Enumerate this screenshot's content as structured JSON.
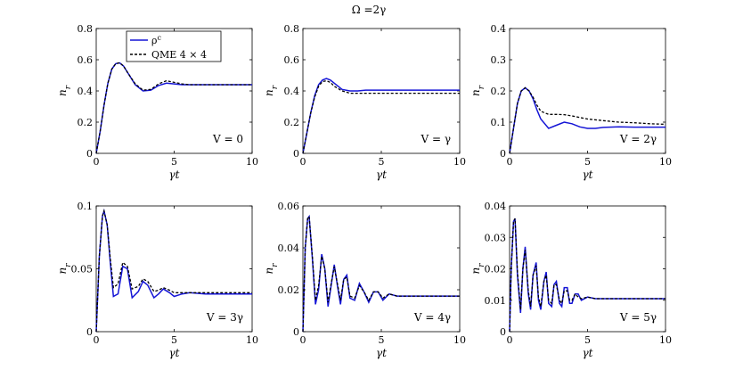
{
  "figure": {
    "title": "Ω =2γ"
  },
  "legend": {
    "entries": [
      {
        "label": "ρ^c",
        "color": "#1515d6",
        "style": "solid"
      },
      {
        "label": "QME 4 × 4",
        "color": "#000000",
        "style": "dashed"
      }
    ]
  },
  "colors": {
    "series_rho": "#1515d6",
    "series_qme": "#000000"
  },
  "chart_data": [
    {
      "type": "line",
      "xlabel": "γt",
      "ylabel": "n_r",
      "xlim": [
        0,
        10
      ],
      "ylim": [
        0,
        0.8
      ],
      "xticks": [
        "0",
        "5",
        "10"
      ],
      "yticks": [
        "0",
        "0.2",
        "0.4",
        "0.6",
        "0.8"
      ],
      "annotation": "V = 0",
      "series": [
        {
          "name": "ρ^c",
          "x": [
            0,
            0.25,
            0.5,
            0.75,
            1,
            1.25,
            1.5,
            1.75,
            2,
            2.5,
            3,
            3.5,
            4,
            4.5,
            5,
            5.5,
            6,
            7,
            8,
            9,
            10
          ],
          "y": [
            0,
            0.14,
            0.31,
            0.45,
            0.54,
            0.575,
            0.58,
            0.56,
            0.52,
            0.44,
            0.4,
            0.405,
            0.435,
            0.45,
            0.445,
            0.44,
            0.44,
            0.44,
            0.44,
            0.44,
            0.44
          ]
        },
        {
          "name": "QME 4 × 4",
          "x": [
            0,
            0.25,
            0.5,
            0.75,
            1,
            1.25,
            1.5,
            1.75,
            2,
            2.5,
            3,
            3.5,
            4,
            4.5,
            5,
            5.5,
            6,
            7,
            8,
            9,
            10
          ],
          "y": [
            0,
            0.14,
            0.31,
            0.45,
            0.54,
            0.575,
            0.58,
            0.56,
            0.52,
            0.445,
            0.405,
            0.41,
            0.445,
            0.465,
            0.455,
            0.445,
            0.44,
            0.44,
            0.44,
            0.44,
            0.44
          ]
        }
      ]
    },
    {
      "type": "line",
      "xlabel": "γt",
      "ylabel": "n_r",
      "xlim": [
        0,
        10
      ],
      "ylim": [
        0,
        0.8
      ],
      "xticks": [
        "0",
        "5",
        "10"
      ],
      "yticks": [
        "0",
        "0.2",
        "0.4",
        "0.6",
        "0.8"
      ],
      "annotation": "V = γ",
      "series": [
        {
          "name": "ρ^c",
          "x": [
            0,
            0.25,
            0.5,
            0.75,
            1,
            1.25,
            1.5,
            1.75,
            2,
            2.5,
            3,
            3.5,
            4,
            5,
            6,
            7,
            8,
            9,
            10
          ],
          "y": [
            0,
            0.13,
            0.26,
            0.37,
            0.44,
            0.47,
            0.48,
            0.47,
            0.45,
            0.41,
            0.4,
            0.4,
            0.405,
            0.405,
            0.405,
            0.405,
            0.405,
            0.405,
            0.405
          ]
        },
        {
          "name": "QME 4 × 4",
          "x": [
            0,
            0.25,
            0.5,
            0.75,
            1,
            1.25,
            1.5,
            1.75,
            2,
            2.5,
            3,
            3.5,
            4,
            5,
            6,
            7,
            8,
            9,
            10
          ],
          "y": [
            0,
            0.13,
            0.26,
            0.36,
            0.43,
            0.46,
            0.465,
            0.455,
            0.43,
            0.4,
            0.385,
            0.385,
            0.385,
            0.385,
            0.385,
            0.385,
            0.385,
            0.385,
            0.385
          ]
        }
      ]
    },
    {
      "type": "line",
      "xlabel": "γt",
      "ylabel": "n_r",
      "xlim": [
        0,
        10
      ],
      "ylim": [
        0,
        0.4
      ],
      "xticks": [
        "0",
        "5",
        "10"
      ],
      "yticks": [
        "0",
        "0.1",
        "0.2",
        "0.3",
        "0.4"
      ],
      "annotation": "V = 2γ",
      "series": [
        {
          "name": "ρ^c",
          "x": [
            0,
            0.25,
            0.5,
            0.75,
            1,
            1.25,
            1.5,
            1.75,
            2,
            2.5,
            3,
            3.5,
            4,
            4.5,
            5,
            5.5,
            6,
            7,
            8,
            9,
            10
          ],
          "y": [
            0,
            0.08,
            0.16,
            0.2,
            0.21,
            0.2,
            0.175,
            0.14,
            0.11,
            0.08,
            0.09,
            0.1,
            0.095,
            0.085,
            0.08,
            0.08,
            0.083,
            0.085,
            0.084,
            0.084,
            0.084
          ]
        },
        {
          "name": "QME 4 × 4",
          "x": [
            0,
            0.25,
            0.5,
            0.75,
            1,
            1.25,
            1.5,
            1.75,
            2,
            2.5,
            3,
            3.5,
            4,
            4.5,
            5,
            6,
            7,
            8,
            9,
            10
          ],
          "y": [
            0,
            0.08,
            0.16,
            0.2,
            0.21,
            0.2,
            0.18,
            0.155,
            0.135,
            0.125,
            0.125,
            0.124,
            0.12,
            0.115,
            0.11,
            0.105,
            0.1,
            0.098,
            0.095,
            0.093
          ]
        }
      ]
    },
    {
      "type": "line",
      "xlabel": "γt",
      "ylabel": "n_r",
      "xlim": [
        0,
        10
      ],
      "ylim": [
        0,
        0.1
      ],
      "xticks": [
        "0",
        "5",
        "10"
      ],
      "yticks": [
        "0",
        "0.05",
        "0.1"
      ],
      "annotation": "V = 3γ",
      "series": [
        {
          "name": "ρ^c",
          "x": [
            0,
            0.2,
            0.4,
            0.5,
            0.7,
            0.9,
            1.1,
            1.4,
            1.7,
            2.0,
            2.3,
            2.7,
            3.0,
            3.3,
            3.7,
            4.0,
            4.3,
            4.7,
            5.0,
            5.5,
            6,
            7,
            8,
            9,
            10
          ],
          "y": [
            0,
            0.06,
            0.092,
            0.096,
            0.085,
            0.055,
            0.028,
            0.03,
            0.052,
            0.05,
            0.027,
            0.032,
            0.04,
            0.037,
            0.027,
            0.03,
            0.034,
            0.031,
            0.028,
            0.03,
            0.031,
            0.03,
            0.03,
            0.03,
            0.03
          ]
        },
        {
          "name": "QME 4 × 4",
          "x": [
            0,
            0.2,
            0.4,
            0.5,
            0.7,
            0.9,
            1.1,
            1.4,
            1.7,
            2.0,
            2.3,
            2.7,
            3.0,
            3.3,
            3.7,
            4.0,
            4.3,
            4.7,
            5.0,
            5.5,
            6,
            7,
            8,
            9,
            10
          ],
          "y": [
            0,
            0.06,
            0.092,
            0.096,
            0.085,
            0.058,
            0.035,
            0.038,
            0.055,
            0.052,
            0.034,
            0.036,
            0.042,
            0.04,
            0.032,
            0.033,
            0.035,
            0.033,
            0.031,
            0.031,
            0.031,
            0.031,
            0.031,
            0.031,
            0.031
          ]
        }
      ]
    },
    {
      "type": "line",
      "xlabel": "γt",
      "ylabel": "n_r",
      "xlim": [
        0,
        10
      ],
      "ylim": [
        0,
        0.06
      ],
      "xticks": [
        "0",
        "5",
        "10"
      ],
      "yticks": [
        "0",
        "0.02",
        "0.04",
        "0.06"
      ],
      "annotation": "V = 4γ",
      "series": [
        {
          "name": "ρ^c",
          "x": [
            0,
            0.15,
            0.3,
            0.4,
            0.6,
            0.8,
            1.0,
            1.2,
            1.4,
            1.6,
            1.8,
            2.0,
            2.2,
            2.4,
            2.6,
            2.8,
            3.0,
            3.3,
            3.6,
            3.9,
            4.2,
            4.5,
            4.8,
            5.1,
            5.5,
            6,
            7,
            8,
            9,
            10
          ],
          "y": [
            0,
            0.04,
            0.054,
            0.055,
            0.035,
            0.013,
            0.02,
            0.037,
            0.03,
            0.012,
            0.022,
            0.032,
            0.022,
            0.013,
            0.025,
            0.027,
            0.016,
            0.015,
            0.023,
            0.019,
            0.014,
            0.019,
            0.019,
            0.015,
            0.018,
            0.017,
            0.017,
            0.017,
            0.017,
            0.017
          ]
        },
        {
          "name": "QME 4 × 4",
          "x": [
            0,
            0.15,
            0.3,
            0.4,
            0.6,
            0.8,
            1.0,
            1.2,
            1.4,
            1.6,
            1.8,
            2.0,
            2.2,
            2.4,
            2.6,
            2.8,
            3.0,
            3.3,
            3.6,
            3.9,
            4.2,
            4.5,
            4.8,
            5.1,
            5.5,
            6,
            7,
            8,
            9,
            10
          ],
          "y": [
            0,
            0.04,
            0.054,
            0.055,
            0.036,
            0.015,
            0.022,
            0.036,
            0.03,
            0.014,
            0.023,
            0.031,
            0.023,
            0.015,
            0.025,
            0.026,
            0.017,
            0.016,
            0.022,
            0.019,
            0.015,
            0.019,
            0.019,
            0.016,
            0.018,
            0.017,
            0.017,
            0.017,
            0.017,
            0.017
          ]
        }
      ]
    },
    {
      "type": "line",
      "xlabel": "γt",
      "ylabel": "n_r",
      "xlim": [
        0,
        10
      ],
      "ylim": [
        0,
        0.04
      ],
      "xticks": [
        "0",
        "5",
        "10"
      ],
      "yticks": [
        "0",
        "0.01",
        "0.02",
        "0.03",
        "0.04"
      ],
      "annotation": "V = 5γ",
      "series": [
        {
          "name": "ρ^c",
          "x": [
            0,
            0.1,
            0.25,
            0.35,
            0.5,
            0.7,
            0.85,
            1.0,
            1.2,
            1.35,
            1.5,
            1.7,
            1.85,
            2.0,
            2.2,
            2.35,
            2.5,
            2.7,
            2.85,
            3.0,
            3.2,
            3.35,
            3.5,
            3.7,
            3.85,
            4.0,
            4.2,
            4.4,
            4.6,
            5.0,
            5.5,
            6,
            7,
            8,
            9,
            10
          ],
          "y": [
            0,
            0.02,
            0.035,
            0.036,
            0.018,
            0.006,
            0.02,
            0.027,
            0.012,
            0.007,
            0.018,
            0.022,
            0.01,
            0.007,
            0.016,
            0.019,
            0.009,
            0.008,
            0.015,
            0.016,
            0.009,
            0.008,
            0.014,
            0.014,
            0.009,
            0.009,
            0.012,
            0.012,
            0.01,
            0.011,
            0.0105,
            0.0105,
            0.0105,
            0.0105,
            0.0105,
            0.0105
          ]
        },
        {
          "name": "QME 4 × 4",
          "x": [
            0,
            0.1,
            0.25,
            0.35,
            0.5,
            0.7,
            0.85,
            1.0,
            1.2,
            1.35,
            1.5,
            1.7,
            1.85,
            2.0,
            2.2,
            2.35,
            2.5,
            2.7,
            2.85,
            3.0,
            3.2,
            3.35,
            3.5,
            3.7,
            3.85,
            4.0,
            4.2,
            4.4,
            4.6,
            5.0,
            5.5,
            6,
            7,
            8,
            9,
            10
          ],
          "y": [
            0,
            0.02,
            0.035,
            0.036,
            0.019,
            0.007,
            0.02,
            0.026,
            0.013,
            0.008,
            0.018,
            0.021,
            0.011,
            0.008,
            0.016,
            0.018,
            0.01,
            0.009,
            0.015,
            0.015,
            0.01,
            0.009,
            0.013,
            0.013,
            0.01,
            0.01,
            0.012,
            0.011,
            0.0105,
            0.011,
            0.0105,
            0.0105,
            0.0105,
            0.0105,
            0.0105,
            0.0105
          ]
        }
      ]
    }
  ]
}
